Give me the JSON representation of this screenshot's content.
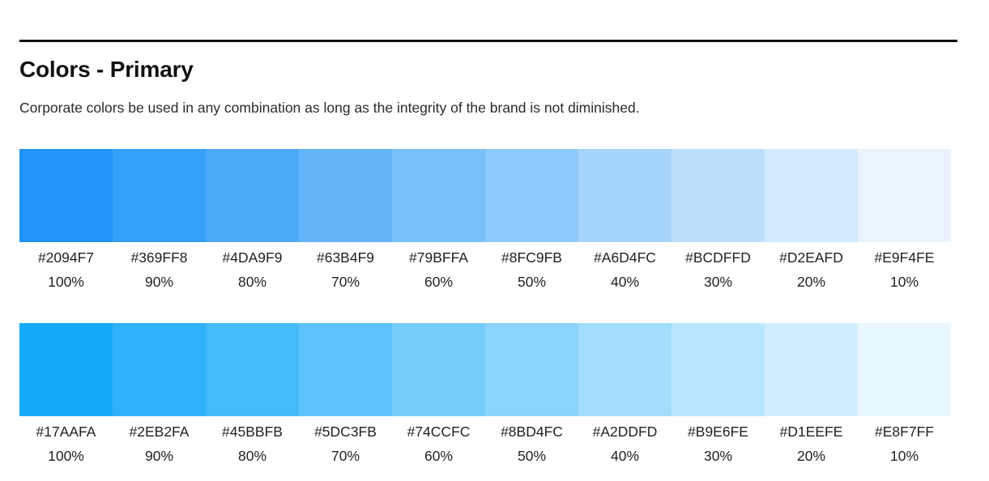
{
  "header": {
    "title": "Colors - Primary",
    "description": "Corporate colors be used in any combination as long as the integrity of the brand is not diminished."
  },
  "palettes": [
    {
      "swatches": [
        {
          "hex": "#2094F7",
          "percent": "100%"
        },
        {
          "hex": "#369FF8",
          "percent": "90%"
        },
        {
          "hex": "#4DA9F9",
          "percent": "80%"
        },
        {
          "hex": "#63B4F9",
          "percent": "70%"
        },
        {
          "hex": "#79BFFA",
          "percent": "60%"
        },
        {
          "hex": "#8FC9FB",
          "percent": "50%"
        },
        {
          "hex": "#A6D4FC",
          "percent": "40%"
        },
        {
          "hex": "#BCDFFD",
          "percent": "30%"
        },
        {
          "hex": "#D2EAFD",
          "percent": "20%"
        },
        {
          "hex": "#E9F4FE",
          "percent": "10%"
        }
      ]
    },
    {
      "swatches": [
        {
          "hex": "#17AAFA",
          "percent": "100%"
        },
        {
          "hex": "#2EB2FA",
          "percent": "90%"
        },
        {
          "hex": "#45BBFB",
          "percent": "80%"
        },
        {
          "hex": "#5DC3FB",
          "percent": "70%"
        },
        {
          "hex": "#74CCFC",
          "percent": "60%"
        },
        {
          "hex": "#8BD4FC",
          "percent": "50%"
        },
        {
          "hex": "#A2DDFD",
          "percent": "40%"
        },
        {
          "hex": "#B9E6FE",
          "percent": "30%"
        },
        {
          "hex": "#D1EEFE",
          "percent": "20%"
        },
        {
          "hex": "#E8F7FF",
          "percent": "10%"
        }
      ]
    }
  ]
}
